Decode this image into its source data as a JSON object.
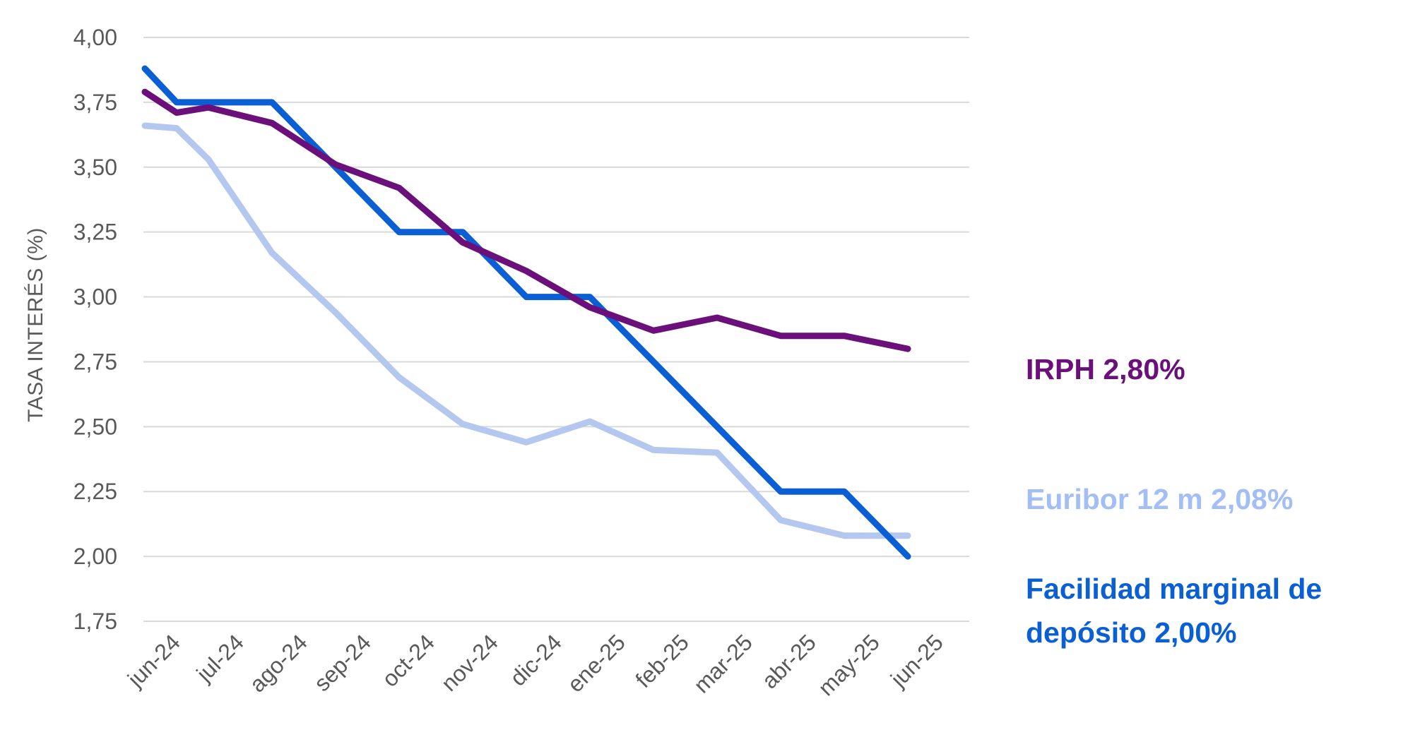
{
  "chart_data": {
    "type": "line",
    "title": "",
    "ylabel": "TASA INTERÉS (%)",
    "xlabel": "",
    "ylim": [
      1.75,
      4.0
    ],
    "yticks": [
      "4,00",
      "3,75",
      "3,50",
      "3,25",
      "3,00",
      "2,75",
      "2,50",
      "2,25",
      "2,00",
      "1,75"
    ],
    "ytick_values": [
      4.0,
      3.75,
      3.5,
      3.25,
      3.0,
      2.75,
      2.5,
      2.25,
      2.0,
      1.75
    ],
    "categories": [
      "jun-24",
      "jul-24",
      "ago-24",
      "sep-24",
      "oct-24",
      "nov-24",
      "dic-24",
      "ene-25",
      "feb-25",
      "mar-25",
      "abr-25",
      "may-25",
      "jun-25"
    ],
    "grid": true,
    "legend_placement": "right (end labels)",
    "series": [
      {
        "key": "euribor",
        "color": "#b4c7ee",
        "points": [
          [
            "jun-24",
            3.66
          ],
          [
            "jun-24+",
            3.65
          ],
          [
            "jul-24",
            3.53
          ],
          [
            "ago-24",
            3.17
          ],
          [
            "sep-24",
            2.94
          ],
          [
            "oct-24",
            2.69
          ],
          [
            "nov-24",
            2.51
          ],
          [
            "dic-24",
            2.44
          ],
          [
            "ene-25",
            2.52
          ],
          [
            "feb-25",
            2.41
          ],
          [
            "mar-25",
            2.4
          ],
          [
            "abr-25",
            2.14
          ],
          [
            "may-25",
            2.08
          ],
          [
            "jun-25",
            2.08
          ]
        ]
      },
      {
        "key": "facilidad",
        "color": "#0a5fd4",
        "points": [
          [
            "jun-24",
            3.88
          ],
          [
            "jun-24+",
            3.75
          ],
          [
            "jul-24",
            3.75
          ],
          [
            "ago-24",
            3.75
          ],
          [
            "sep-24",
            3.5
          ],
          [
            "oct-24",
            3.25
          ],
          [
            "nov-24",
            3.25
          ],
          [
            "dic-24",
            3.0
          ],
          [
            "ene-25",
            3.0
          ],
          [
            "feb-25",
            2.75
          ],
          [
            "mar-25",
            2.5
          ],
          [
            "abr-25",
            2.25
          ],
          [
            "may-25",
            2.25
          ],
          [
            "jun-25",
            2.0
          ]
        ]
      },
      {
        "key": "irph",
        "color": "#6b0f7a",
        "points": [
          [
            "jun-24",
            3.79
          ],
          [
            "jun-24+",
            3.71
          ],
          [
            "jul-24",
            3.73
          ],
          [
            "ago-24",
            3.67
          ],
          [
            "sep-24",
            3.51
          ],
          [
            "oct-24",
            3.42
          ],
          [
            "nov-24",
            3.21
          ],
          [
            "dic-24",
            3.1
          ],
          [
            "ene-25",
            2.96
          ],
          [
            "feb-25",
            2.87
          ],
          [
            "mar-25",
            2.92
          ],
          [
            "abr-25",
            2.85
          ],
          [
            "may-25",
            2.85
          ],
          [
            "jun-25",
            2.8
          ]
        ]
      }
    ],
    "end_labels": {
      "irph": {
        "text": "IRPH 2,80%",
        "color": "#6b0f7a"
      },
      "euribor": {
        "text": "Euribor 12 m 2,08%",
        "color": "#a3bdf5"
      },
      "facilidad_line1": {
        "text": "Facilidad marginal de",
        "color": "#0a5fd4"
      },
      "facilidad_line2": {
        "text": "depósito 2,00%",
        "color": "#0a5fd4"
      }
    }
  }
}
